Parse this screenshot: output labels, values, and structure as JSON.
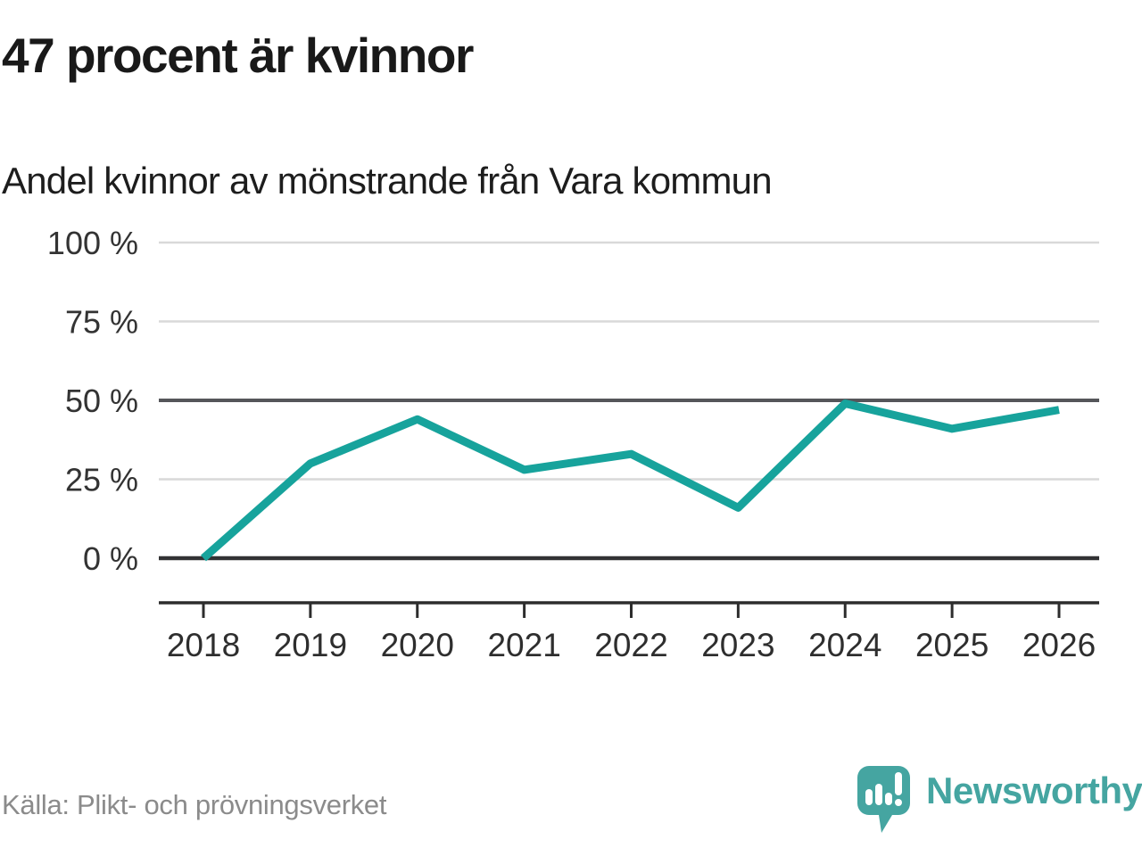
{
  "header": {
    "title": "47 procent är kvinnor",
    "subtitle": "Andel kvinnor av mönstrande från Vara kommun"
  },
  "footer": {
    "source": "Källa: Plikt- och prövningsverket",
    "brand": "Newsworthy"
  },
  "colors": {
    "accent": "#17a39c",
    "brand": "#45a5a1",
    "grid_light": "#d9d9d9",
    "grid_dark": "#55565a",
    "baseline_dark": "#323234",
    "axis": "#2d2d2d",
    "tick_text": "#333333"
  },
  "chart_data": {
    "type": "line",
    "title": "47 procent är kvinnor",
    "subtitle": "Andel kvinnor av mönstrande från Vara kommun",
    "source": "Källa: Plikt- och prövningsverket",
    "categories": [
      "2018",
      "2019",
      "2020",
      "2021",
      "2022",
      "2023",
      "2024",
      "2025",
      "2026"
    ],
    "series": [
      {
        "name": "Andel kvinnor av mönstrande",
        "values": [
          0,
          30,
          44,
          28,
          33,
          16,
          49,
          41,
          47
        ]
      }
    ],
    "unit": "%",
    "ylim": [
      0,
      100
    ],
    "yticks": [
      {
        "value": 0,
        "label": "0 %"
      },
      {
        "value": 25,
        "label": "25 %"
      },
      {
        "value": 50,
        "label": "50 %"
      },
      {
        "value": 75,
        "label": "75 %"
      },
      {
        "value": 100,
        "label": "100 %"
      }
    ],
    "emphasized_gridlines": [
      0,
      50
    ],
    "grid": "horizontal-only",
    "legend": "none",
    "line_color": "#17a39c"
  }
}
